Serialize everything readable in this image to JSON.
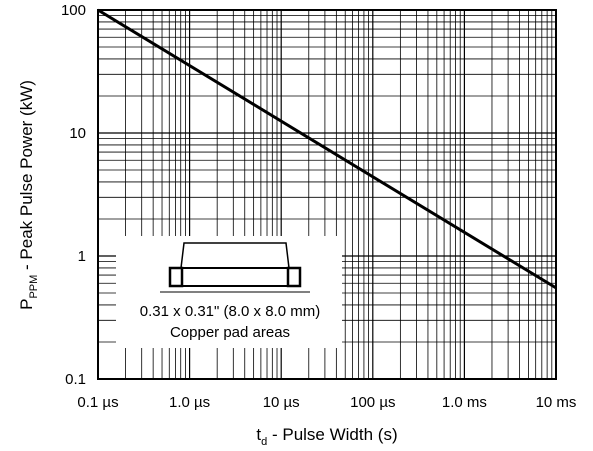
{
  "chart_data": {
    "type": "line",
    "xscale": "log",
    "yscale": "log",
    "xlim": [
      1e-07,
      0.01
    ],
    "ylim": [
      0.1,
      100
    ],
    "grid": true,
    "series": [
      {
        "x": [
          1e-07,
          0.01
        ],
        "y": [
          100,
          0.55
        ]
      }
    ],
    "x_ticks": [
      {
        "value": 1e-07,
        "label": "0.1 µs"
      },
      {
        "value": 1e-06,
        "label": "1.0 µs"
      },
      {
        "value": 1e-05,
        "label": "10 µs"
      },
      {
        "value": 0.0001,
        "label": "100 µs"
      },
      {
        "value": 0.001,
        "label": "1.0 ms"
      },
      {
        "value": 0.01,
        "label": "10 ms"
      }
    ],
    "y_ticks": [
      {
        "value": 100,
        "label": "100"
      },
      {
        "value": 10,
        "label": "10"
      },
      {
        "value": 1,
        "label": "1"
      },
      {
        "value": 0.1,
        "label": "0.1"
      }
    ],
    "xlabel": {
      "main": "t",
      "sub": "d",
      "rest": " - Pulse Width (s)"
    },
    "ylabel": {
      "main": "P",
      "sub": "PPM",
      "rest": " - Peak Pulse Power (kW)"
    },
    "annotation": {
      "line1": "0.31 x 0.31\" (8.0 x 8.0 mm)",
      "line2": "Copper pad areas"
    }
  }
}
